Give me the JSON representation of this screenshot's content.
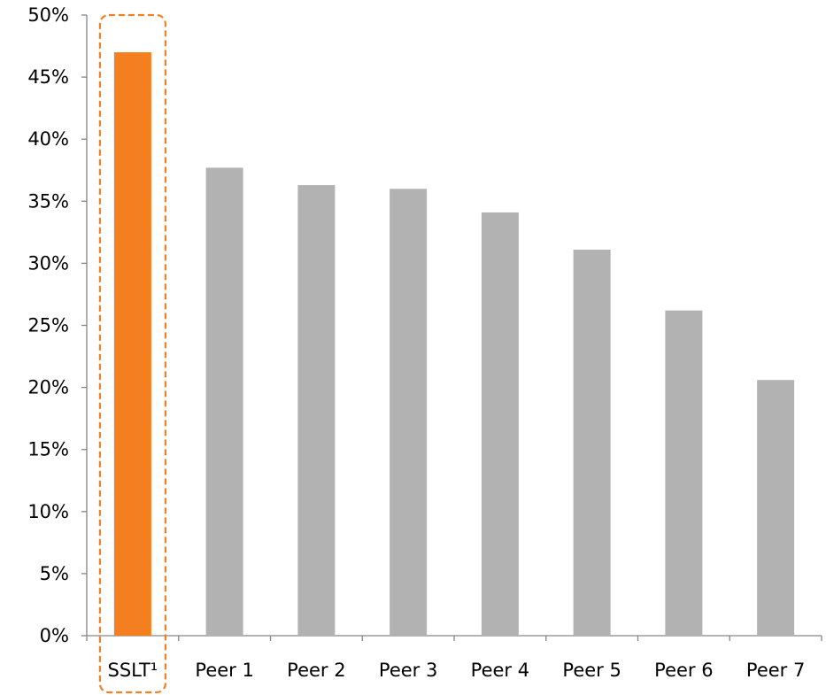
{
  "chart_data": {
    "type": "bar",
    "categories": [
      "SSLT¹",
      "Peer 1",
      "Peer 2",
      "Peer 3",
      "Peer 4",
      "Peer 5",
      "Peer 6",
      "Peer 7"
    ],
    "values": [
      47.0,
      37.7,
      36.3,
      36.0,
      34.1,
      31.1,
      26.2,
      20.6
    ],
    "highlight_index": 0,
    "highlight_style": "dashed rounded box",
    "ylim": [
      0,
      50
    ],
    "y_ticks": [
      0,
      5,
      10,
      15,
      20,
      25,
      30,
      35,
      40,
      45,
      50
    ],
    "y_tick_format": "percent",
    "grid": false,
    "legend": "none",
    "title": "",
    "xlabel": "",
    "ylabel": "",
    "colors": {
      "highlight": "#F37F20",
      "default": "#B2B2B2",
      "axis": "#868686",
      "highlight_border": "#F37F20"
    }
  }
}
